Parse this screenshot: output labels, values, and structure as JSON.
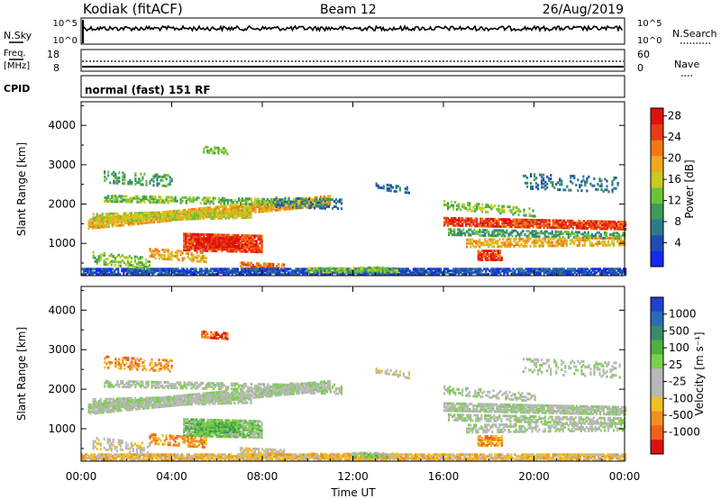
{
  "header": {
    "station": "Kodiak (fitACF)",
    "beam": "Beam 12",
    "date": "26/Aug/2019"
  },
  "nsky_panel": {
    "left_label": "N.Sky",
    "left_ticks": [
      "10^5",
      "10^0"
    ],
    "right_label": "N.Search",
    "right_ticks": [
      "10^5",
      "10^0"
    ]
  },
  "freq_panel": {
    "left_label_1": "Freq.",
    "left_label_2": "[MHz]",
    "left_ticks": [
      "18",
      "8"
    ],
    "right_label": "Nave",
    "right_ticks": [
      "60",
      "0"
    ]
  },
  "cpid_panel": {
    "label": "CPID",
    "mode_text": "normal (fast) 151 RF"
  },
  "colors": {
    "power_scale": [
      "#1428f0",
      "#1f4bb8",
      "#2e7a8c",
      "#3c9a5a",
      "#6cc23a",
      "#c8cc1e",
      "#f0a820",
      "#f07814",
      "#e83c14",
      "#e01010"
    ],
    "velocity_scale": [
      "#2040d0",
      "#2a6ab8",
      "#3a8a6a",
      "#50b040",
      "#7ad04a",
      "#b8b8b8",
      "#b8b8b8",
      "#f0c020",
      "#f09020",
      "#f06018",
      "#e01010"
    ]
  },
  "chart_data": [
    {
      "type": "heatmap",
      "title": "Power",
      "xlabel": "Time UT",
      "ylabel": "Slant Range [km]",
      "x_ticks": [
        "00:00",
        "04:00",
        "08:00",
        "12:00",
        "16:00",
        "20:00",
        "00:00"
      ],
      "x_range_hours": [
        0,
        24
      ],
      "y_ticks": [
        1000,
        2000,
        3000,
        4000
      ],
      "y_range": [
        180,
        4600
      ],
      "colorbar_label": "Power [dB]",
      "colorbar_ticks": [
        4,
        8,
        12,
        16,
        20,
        24,
        28
      ],
      "colorbar_range": [
        0,
        30
      ]
    },
    {
      "type": "heatmap",
      "title": "Velocity",
      "xlabel": "Time UT",
      "ylabel": "Slant Range [km]",
      "x_ticks": [
        "00:00",
        "04:00",
        "08:00",
        "12:00",
        "16:00",
        "20:00",
        "00:00"
      ],
      "x_range_hours": [
        0,
        24
      ],
      "y_ticks": [
        1000,
        2000,
        3000,
        4000
      ],
      "y_range": [
        180,
        4600
      ],
      "colorbar_label": "Velocity [m s⁻¹]",
      "colorbar_ticks": [
        "1000",
        "500",
        "100",
        "25",
        "-25",
        "-100",
        "-500",
        "-1000"
      ]
    }
  ]
}
